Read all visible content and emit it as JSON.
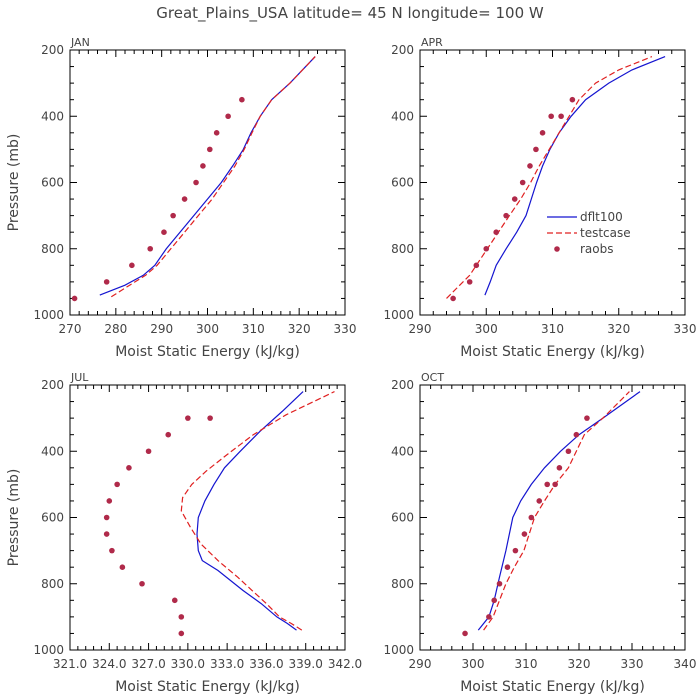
{
  "title": "Great_Plains_USA   latitude= 45 N longitude= 100 W",
  "colors": {
    "dflt": "#1515d0",
    "testcase": "#e02020",
    "raobs": "#b02a4a",
    "text": "#444444"
  },
  "legend": [
    "dflt100",
    "testcase",
    "raobs"
  ],
  "chart_data": [
    {
      "type": "line",
      "panel": "JAN",
      "xlabel": "Moist Static Energy (kJ/kg)",
      "ylabel": "Pressure (mb)",
      "xlim": [
        270,
        330
      ],
      "ylim": [
        1000,
        200
      ],
      "y_inverted": true,
      "xticks": [
        270,
        280,
        290,
        300,
        310,
        320,
        330
      ],
      "yticks": [
        200,
        400,
        600,
        800,
        1000
      ],
      "series": [
        {
          "name": "dflt100",
          "style": "solid",
          "x": [
            276.5,
            282,
            286,
            288.5,
            291,
            294,
            297,
            300,
            303,
            305.5,
            307.8,
            309.5,
            311.5,
            314,
            318,
            323.5
          ],
          "y": [
            940,
            910,
            880,
            850,
            800,
            750,
            700,
            650,
            600,
            550,
            500,
            450,
            400,
            350,
            300,
            220
          ]
        },
        {
          "name": "testcase",
          "style": "dashed",
          "x": [
            279,
            283,
            286.5,
            289,
            292,
            295,
            298,
            301,
            303.5,
            306,
            308,
            309.7,
            311.5,
            314,
            318,
            323.5
          ],
          "y": [
            945,
            910,
            880,
            850,
            800,
            750,
            700,
            650,
            600,
            550,
            500,
            450,
            400,
            350,
            300,
            220
          ]
        },
        {
          "name": "raobs",
          "style": "markers",
          "x": [
            271,
            278,
            283.5,
            287.5,
            290.5,
            292.5,
            295,
            297.5,
            299,
            300.5,
            302,
            304.5,
            307.5
          ],
          "y": [
            950,
            900,
            850,
            800,
            750,
            700,
            650,
            600,
            550,
            500,
            450,
            400,
            350
          ]
        }
      ]
    },
    {
      "type": "line",
      "panel": "APR",
      "xlabel": "Moist Static Energy (kJ/kg)",
      "ylabel": "",
      "xlim": [
        290,
        330
      ],
      "ylim": [
        1000,
        200
      ],
      "y_inverted": true,
      "xticks": [
        290,
        300,
        310,
        320,
        330
      ],
      "yticks": [
        200,
        400,
        600,
        800,
        1000
      ],
      "legend_position": "center-right",
      "series": [
        {
          "name": "dflt100",
          "style": "solid",
          "x": [
            299.8,
            300.6,
            301.5,
            303,
            304.6,
            306,
            306.8,
            307.6,
            308.5,
            309.6,
            311,
            312.8,
            315,
            318.5,
            322,
            327
          ],
          "y": [
            940,
            900,
            850,
            800,
            750,
            700,
            650,
            600,
            550,
            500,
            450,
            400,
            350,
            300,
            260,
            220
          ]
        },
        {
          "name": "testcase",
          "style": "dashed",
          "x": [
            294,
            295.5,
            297.5,
            299.5,
            301.5,
            303.5,
            305.2,
            306.7,
            308,
            309.5,
            311,
            312.5,
            314,
            316.5,
            320,
            325
          ],
          "y": [
            950,
            920,
            880,
            820,
            760,
            700,
            650,
            600,
            550,
            500,
            450,
            400,
            350,
            300,
            260,
            220
          ]
        },
        {
          "name": "raobs",
          "style": "markers",
          "x": [
            295,
            297.5,
            298.5,
            300,
            301.5,
            303,
            304.3,
            305.5,
            306.6,
            307.5,
            308.5,
            309.8,
            311.3,
            313
          ],
          "y": [
            950,
            900,
            850,
            800,
            750,
            700,
            650,
            600,
            550,
            500,
            450,
            400,
            400,
            350
          ]
        }
      ]
    },
    {
      "type": "line",
      "panel": "JUL",
      "xlabel": "Moist Static Energy (kJ/kg)",
      "ylabel": "Pressure (mb)",
      "xlim": [
        321.0,
        342.0
      ],
      "ylim": [
        1000,
        200
      ],
      "y_inverted": true,
      "xtick_labels": [
        "321.0",
        "324.0",
        "327.0",
        "330.0",
        "333.0",
        "336.0",
        "339.0",
        "342.0"
      ],
      "xticks": [
        321,
        324,
        327,
        330,
        333,
        336,
        339,
        342
      ],
      "yticks": [
        200,
        400,
        600,
        800,
        1000
      ],
      "series": [
        {
          "name": "dflt100",
          "style": "solid",
          "x": [
            338.3,
            337.6,
            336.8,
            335.6,
            334.2,
            332.3,
            331.1,
            330.8,
            330.7,
            330.8,
            331.3,
            332.0,
            332.8,
            334.0,
            335.5,
            337.2,
            338.8
          ],
          "y": [
            940,
            920,
            900,
            860,
            820,
            760,
            730,
            700,
            650,
            600,
            550,
            500,
            450,
            400,
            340,
            280,
            220
          ]
        },
        {
          "name": "testcase",
          "style": "dashed",
          "x": [
            338.7,
            337.9,
            337.0,
            336.0,
            334.9,
            333.8,
            332.3,
            331.0,
            330.2,
            329.5,
            329.6,
            330.3,
            331.4,
            333.0,
            335.0,
            337.5,
            341.2
          ],
          "y": [
            940,
            920,
            900,
            860,
            820,
            780,
            730,
            680,
            630,
            580,
            540,
            500,
            460,
            410,
            350,
            290,
            220
          ]
        },
        {
          "name": "raobs",
          "style": "markers",
          "x": [
            329.5,
            329.5,
            329.0,
            326.5,
            325.0,
            324.2,
            323.8,
            323.8,
            324.0,
            324.6,
            325.5,
            327.0,
            328.5,
            330.0,
            331.7
          ],
          "y": [
            950,
            900,
            850,
            800,
            750,
            700,
            650,
            600,
            550,
            500,
            450,
            400,
            350,
            300,
            300
          ]
        }
      ]
    },
    {
      "type": "line",
      "panel": "OCT",
      "xlabel": "Moist Static Energy (kJ/kg)",
      "ylabel": "",
      "xlim": [
        290,
        340
      ],
      "ylim": [
        1000,
        200
      ],
      "y_inverted": true,
      "xticks": [
        290,
        300,
        310,
        320,
        330,
        340
      ],
      "yticks": [
        200,
        400,
        600,
        800,
        1000
      ],
      "series": [
        {
          "name": "dflt100",
          "style": "solid",
          "x": [
            301.0,
            303.0,
            304.0,
            305.0,
            306.2,
            307.5,
            309.0,
            311.0,
            313.5,
            316.5,
            320.0,
            324.5,
            331.5
          ],
          "y": [
            940,
            900,
            850,
            780,
            700,
            600,
            550,
            500,
            450,
            400,
            350,
            300,
            220
          ]
        },
        {
          "name": "testcase",
          "style": "dashed",
          "x": [
            302.0,
            303.8,
            305.0,
            306.2,
            307.8,
            309.6,
            311.6,
            313.5,
            315.5,
            318.0,
            321.0,
            324.5,
            329.5
          ],
          "y": [
            940,
            900,
            850,
            800,
            750,
            700,
            600,
            550,
            500,
            450,
            350,
            300,
            220
          ]
        },
        {
          "name": "raobs",
          "style": "markers",
          "x": [
            298.5,
            303,
            304,
            305,
            306.5,
            308,
            309.7,
            311,
            312.5,
            314,
            315.5,
            316.3,
            318,
            319.5,
            321.5
          ],
          "y": [
            950,
            900,
            850,
            800,
            750,
            700,
            650,
            600,
            550,
            500,
            500,
            450,
            400,
            350,
            300
          ]
        }
      ]
    }
  ]
}
